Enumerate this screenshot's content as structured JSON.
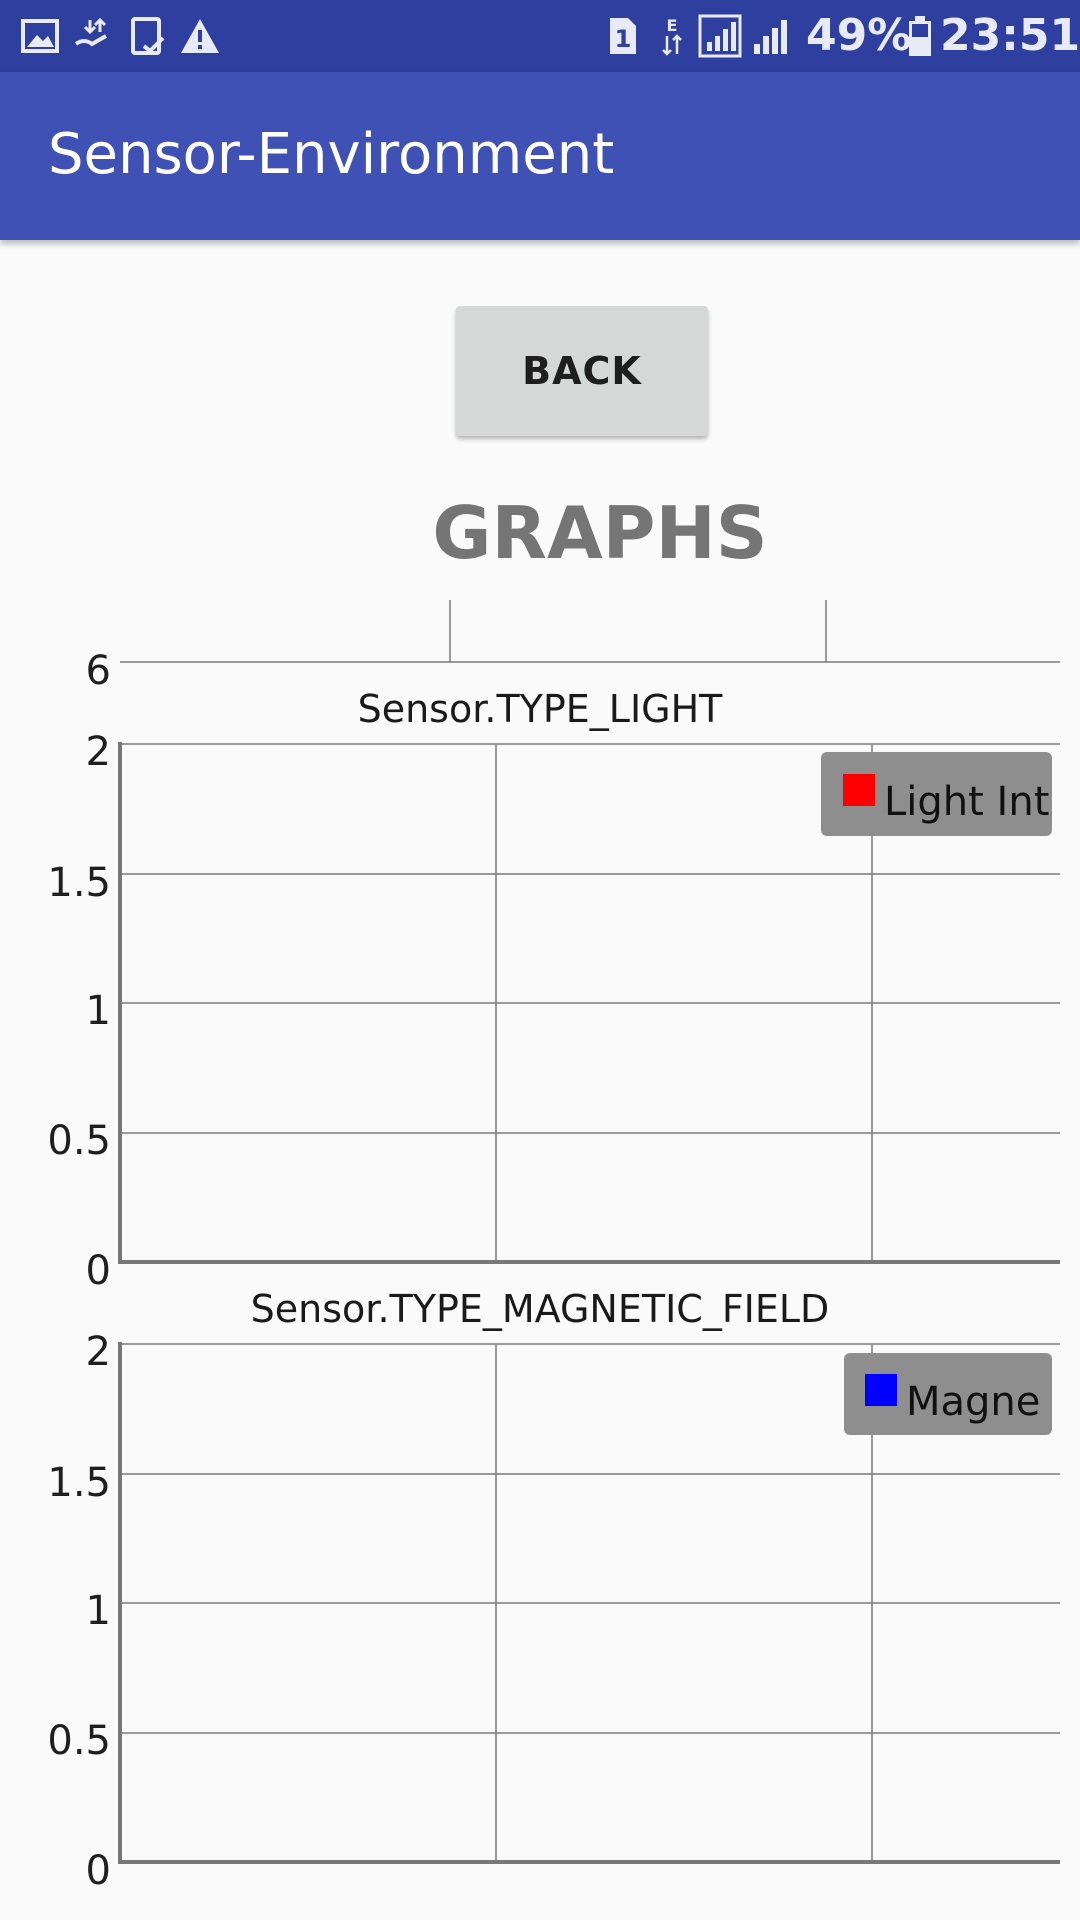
{
  "status_bar": {
    "battery_percent": "49%",
    "time": "23:51",
    "sim_slot": "1",
    "network_type": "E",
    "icons": [
      "gallery-icon",
      "download-icon",
      "tablet-check-icon",
      "warning-icon",
      "sim-icon",
      "data-arrows-icon",
      "signal-icon",
      "signal-icon",
      "battery-icon"
    ]
  },
  "app_bar": {
    "title": "Sensor-Environment",
    "color": "#3f51b5"
  },
  "back_button": {
    "label": "BACK"
  },
  "heading": "GRAPHS",
  "partial_graph": {
    "tick_label": "6"
  },
  "graphs": [
    {
      "title": "Sensor.TYPE_LIGHT",
      "legend": "Light Int",
      "series_color": "#ff0000",
      "y_ticks": [
        "2",
        "1.5",
        "1",
        "0.5",
        "0"
      ]
    },
    {
      "title": "Sensor.TYPE_MAGNETIC_FIELD",
      "legend": "Magne",
      "series_color": "#0000ff",
      "y_ticks": [
        "2",
        "1.5",
        "1",
        "0.5",
        "0"
      ]
    }
  ],
  "chart_data": [
    {
      "type": "line",
      "title": "Sensor.TYPE_LIGHT",
      "series": [
        {
          "name": "Light Int",
          "values": []
        }
      ],
      "ylim": [
        0,
        2
      ],
      "y_ticks": [
        0,
        0.5,
        1,
        1.5,
        2
      ],
      "grid": true,
      "legend": "top-right"
    },
    {
      "type": "line",
      "title": "Sensor.TYPE_MAGNETIC_FIELD",
      "series": [
        {
          "name": "Magne",
          "values": []
        }
      ],
      "ylim": [
        0,
        2
      ],
      "y_ticks": [
        0,
        0.5,
        1,
        1.5,
        2
      ],
      "grid": true,
      "legend": "top-right"
    }
  ]
}
